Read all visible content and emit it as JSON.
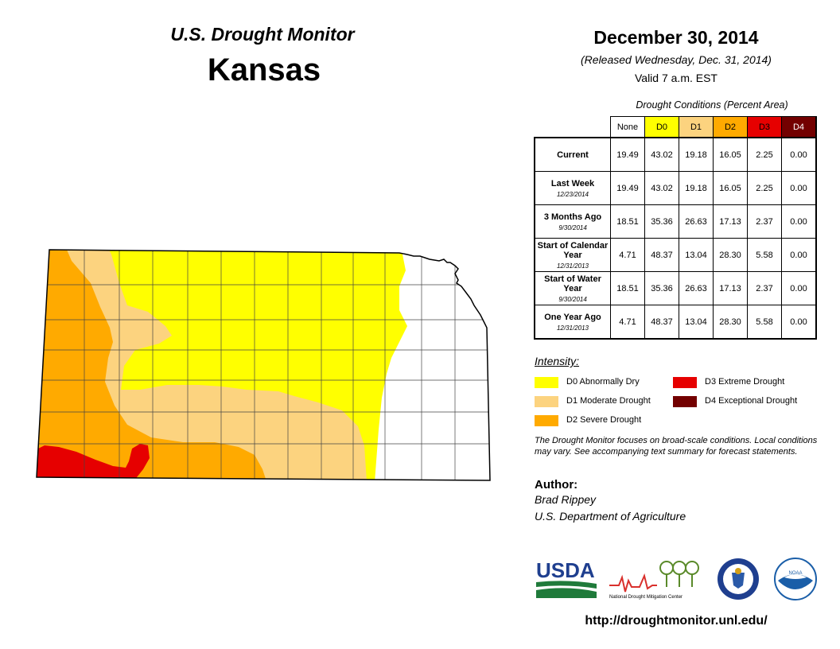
{
  "header": {
    "subtitle": "U.S. Drought Monitor",
    "state": "Kansas",
    "date": "December 30, 2014",
    "released": "(Released Wednesday, Dec. 31, 2014)",
    "valid": "Valid 7 a.m. EST"
  },
  "table": {
    "caption": "Drought Conditions (Percent Area)",
    "columns": [
      {
        "label": "None",
        "color": "#ffffff"
      },
      {
        "label": "D0",
        "color": "#ffff00"
      },
      {
        "label": "D1",
        "color": "#fcd37f"
      },
      {
        "label": "D2",
        "color": "#ffaa00"
      },
      {
        "label": "D3",
        "color": "#e60000"
      },
      {
        "label": "D4",
        "color": "#730000"
      }
    ],
    "rows": [
      {
        "label": "Current",
        "date": "",
        "values": [
          "19.49",
          "43.02",
          "19.18",
          "16.05",
          "2.25",
          "0.00"
        ]
      },
      {
        "label": "Last Week",
        "date": "12/23/2014",
        "values": [
          "19.49",
          "43.02",
          "19.18",
          "16.05",
          "2.25",
          "0.00"
        ]
      },
      {
        "label": "3 Months Ago",
        "date": "9/30/2014",
        "values": [
          "18.51",
          "35.36",
          "26.63",
          "17.13",
          "2.37",
          "0.00"
        ]
      },
      {
        "label": "Start of Calendar Year",
        "date": "12/31/2013",
        "values": [
          "4.71",
          "48.37",
          "13.04",
          "28.30",
          "5.58",
          "0.00"
        ]
      },
      {
        "label": "Start of Water Year",
        "date": "9/30/2014",
        "values": [
          "18.51",
          "35.36",
          "26.63",
          "17.13",
          "2.37",
          "0.00"
        ]
      },
      {
        "label": "One Year Ago",
        "date": "12/31/2013",
        "values": [
          "4.71",
          "48.37",
          "13.04",
          "28.30",
          "5.58",
          "0.00"
        ]
      }
    ]
  },
  "legend": {
    "title": "Intensity:",
    "items": [
      {
        "label": "D0 Abnormally Dry",
        "color": "#ffff00"
      },
      {
        "label": "D1 Moderate Drought",
        "color": "#fcd37f"
      },
      {
        "label": "D2 Severe Drought",
        "color": "#ffaa00"
      },
      {
        "label": "D3 Extreme Drought",
        "color": "#e60000"
      },
      {
        "label": "D4 Exceptional Drought",
        "color": "#730000"
      }
    ]
  },
  "note": "The Drought Monitor focuses on broad-scale conditions. Local conditions may vary. See accompanying text summary for forecast statements.",
  "author": {
    "heading": "Author:",
    "name": "Brad Rippey",
    "org": "U.S. Department of Agriculture"
  },
  "logos": {
    "usda": "USDA",
    "ndmc": "National Drought Mitigation Center",
    "noaa": "NOAA"
  },
  "url": "http://droughtmonitor.unl.edu/"
}
